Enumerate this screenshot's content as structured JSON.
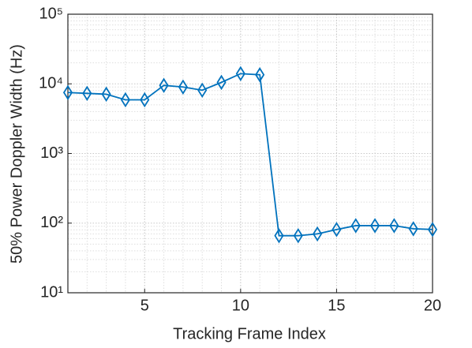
{
  "chart_data": {
    "type": "line",
    "x_label": "Tracking Frame Index",
    "y_label": "50% Power Doppler Width (Hz)",
    "x": [
      1,
      2,
      3,
      4,
      5,
      6,
      7,
      8,
      9,
      10,
      11,
      12,
      13,
      14,
      15,
      16,
      17,
      18,
      19,
      20
    ],
    "series": [
      {
        "color": "#0072bd",
        "marker": "diamond",
        "values": [
          7500,
          7300,
          7100,
          5900,
          5900,
          9500,
          9000,
          8100,
          10500,
          14000,
          13500,
          66,
          66,
          70,
          81,
          92,
          92,
          92,
          83,
          81
        ]
      }
    ],
    "xlim": [
      1,
      20
    ],
    "xticks": [
      5,
      10,
      15,
      20
    ],
    "ylim": [
      10,
      100000
    ],
    "log_y": true,
    "yticks": [
      {
        "value": 10,
        "label": "10¹"
      },
      {
        "value": 100,
        "label": "10²"
      },
      {
        "value": 1000,
        "label": "10³"
      },
      {
        "value": 10000,
        "label": "10⁴"
      },
      {
        "value": 100000,
        "label": "10⁵"
      }
    ],
    "grid": true,
    "minor_grid": true
  }
}
